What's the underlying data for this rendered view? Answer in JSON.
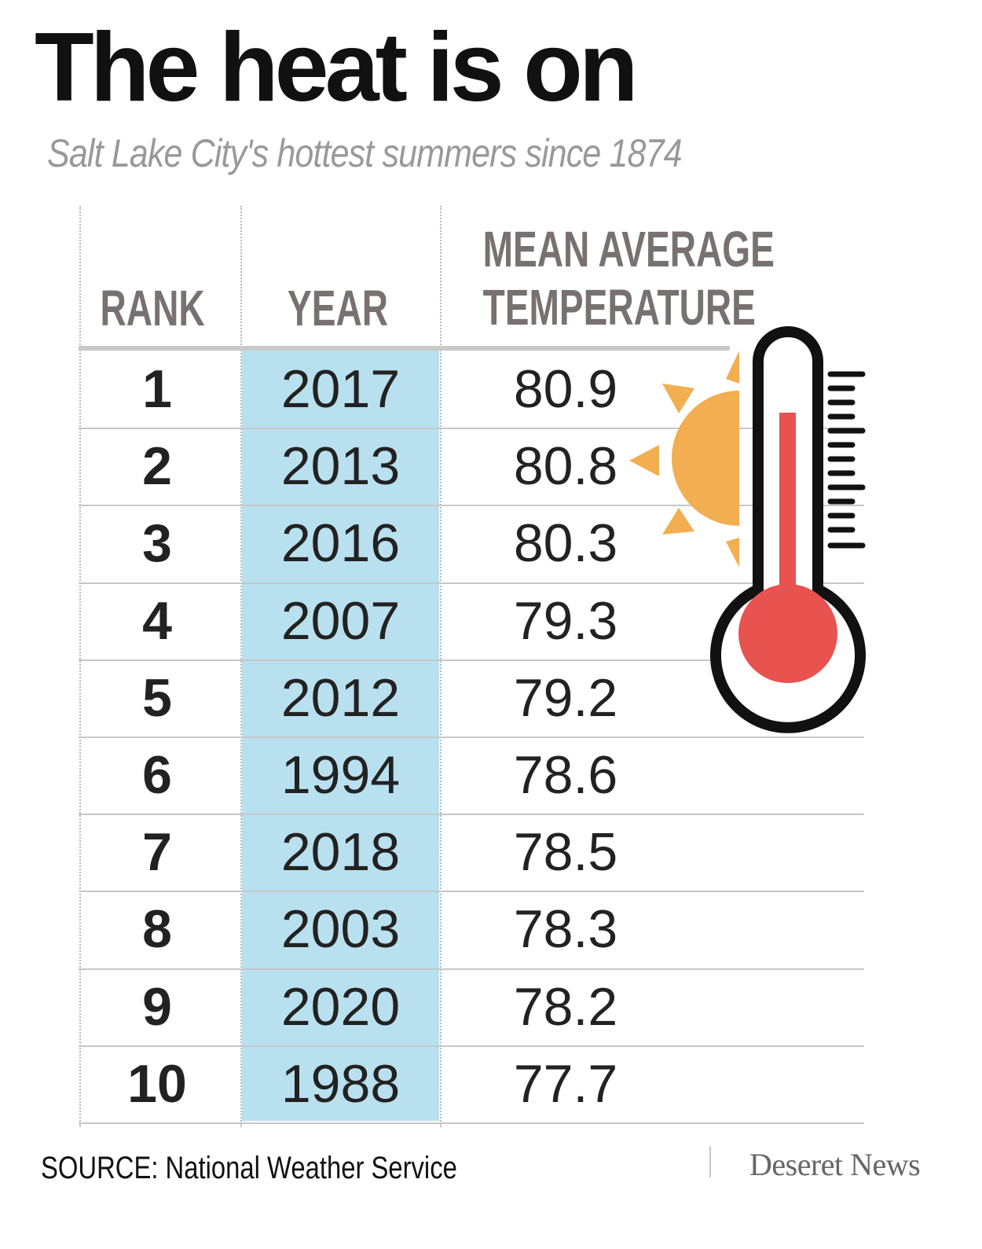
{
  "chart_data": {
    "type": "table",
    "title": "The heat is on",
    "subtitle": "Salt Lake City's hottest summers since 1874",
    "columns": [
      "RANK",
      "YEAR",
      "MEAN AVERAGE TEMPERATURE"
    ],
    "rows": [
      {
        "rank": "1",
        "year": "2017",
        "temp": "80.9"
      },
      {
        "rank": "2",
        "year": "2013",
        "temp": "80.8"
      },
      {
        "rank": "3",
        "year": "2016",
        "temp": "80.3"
      },
      {
        "rank": "4",
        "year": "2007",
        "temp": "79.3"
      },
      {
        "rank": "5",
        "year": "2012",
        "temp": "79.2"
      },
      {
        "rank": "6",
        "year": "1994",
        "temp": "78.6"
      },
      {
        "rank": "7",
        "year": "2018",
        "temp": "78.5"
      },
      {
        "rank": "8",
        "year": "2003",
        "temp": "78.3"
      },
      {
        "rank": "9",
        "year": "2020",
        "temp": "78.2"
      },
      {
        "rank": "10",
        "year": "1988",
        "temp": "77.7"
      }
    ],
    "source": "SOURCE: National Weather Service",
    "brand": "Deseret News"
  },
  "headers": {
    "rank": "RANK",
    "year": "YEAR",
    "temp_line1": "MEAN AVERAGE",
    "temp_line2": "TEMPERATURE"
  },
  "illustration": {
    "icons": [
      "sun-icon",
      "thermometer-icon"
    ],
    "colors": {
      "sun": "#f2ae50",
      "thermometer_fill": "#e8524f",
      "thermometer_outline": "#111111",
      "year_highlight": "#b9e0ee"
    }
  },
  "colors": {
    "title": "#111111",
    "subtitle": "#999999",
    "header": "#777270",
    "rule": "#c7c7c7"
  }
}
